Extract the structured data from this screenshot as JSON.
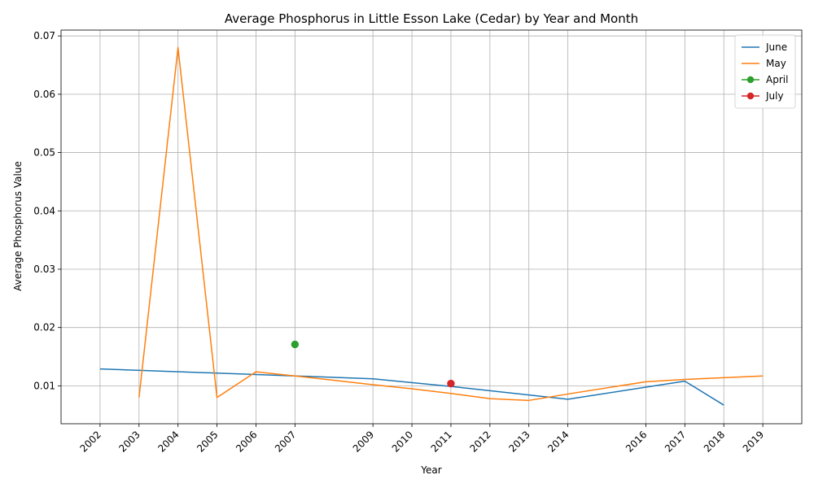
{
  "chart_data": {
    "type": "line",
    "title": "Average Phosphorus in Little Esson Lake (Cedar) by Year and Month",
    "xlabel": "Year",
    "ylabel": "Average Phosphorus Value",
    "xlim": [
      2001,
      2020
    ],
    "ylim": [
      0.0035,
      0.071
    ],
    "xticks": [
      2002,
      2003,
      2004,
      2005,
      2006,
      2007,
      2009,
      2010,
      2011,
      2012,
      2013,
      2014,
      2016,
      2017,
      2018,
      2019
    ],
    "yticks": [
      0.01,
      0.02,
      0.03,
      0.04,
      0.05,
      0.06,
      0.07
    ],
    "ytick_labels": [
      "0.01",
      "0.02",
      "0.03",
      "0.04",
      "0.05",
      "0.06",
      "0.07"
    ],
    "grid": true,
    "legend_position": "top-right",
    "series": [
      {
        "name": "June",
        "color": "#1f77b4",
        "marker": "none",
        "x": [
          2002,
          2007,
          2009,
          2011,
          2014,
          2017,
          2018
        ],
        "y": [
          0.0129,
          0.0117,
          0.0112,
          0.0099,
          0.0077,
          0.0108,
          0.0067
        ]
      },
      {
        "name": "May",
        "color": "#ff7f0e",
        "marker": "none",
        "x": [
          2003,
          2004,
          2005,
          2006,
          2007,
          2009,
          2010,
          2011,
          2012,
          2013,
          2014,
          2016,
          2017,
          2018,
          2019
        ],
        "y": [
          0.008,
          0.068,
          0.008,
          0.0124,
          0.0117,
          0.0102,
          0.0095,
          0.0087,
          0.0078,
          0.0075,
          0.0086,
          0.0107,
          0.0111,
          0.0114,
          0.0117
        ]
      },
      {
        "name": "April",
        "color": "#2ca02c",
        "marker": "circle",
        "x": [
          2007
        ],
        "y": [
          0.0171
        ]
      },
      {
        "name": "July",
        "color": "#d62728",
        "marker": "circle",
        "x": [
          2011
        ],
        "y": [
          0.0104
        ]
      }
    ]
  }
}
